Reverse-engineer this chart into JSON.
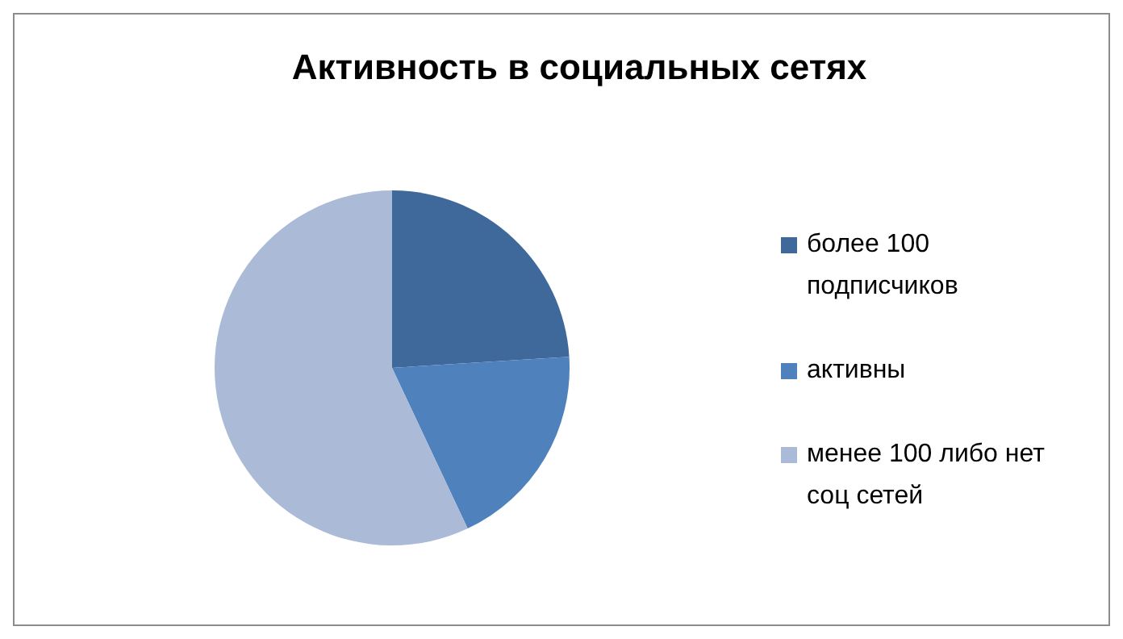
{
  "chart_data": {
    "type": "pie",
    "title": "Активность в социальных сетях",
    "categories": [
      "более 100 подписчиков",
      "активны",
      "менее 100 либо нет соц сетей"
    ],
    "values": [
      24,
      19,
      57
    ],
    "colors": [
      "#3f689b",
      "#4f81bd",
      "#aabad7"
    ],
    "legend": "right"
  }
}
